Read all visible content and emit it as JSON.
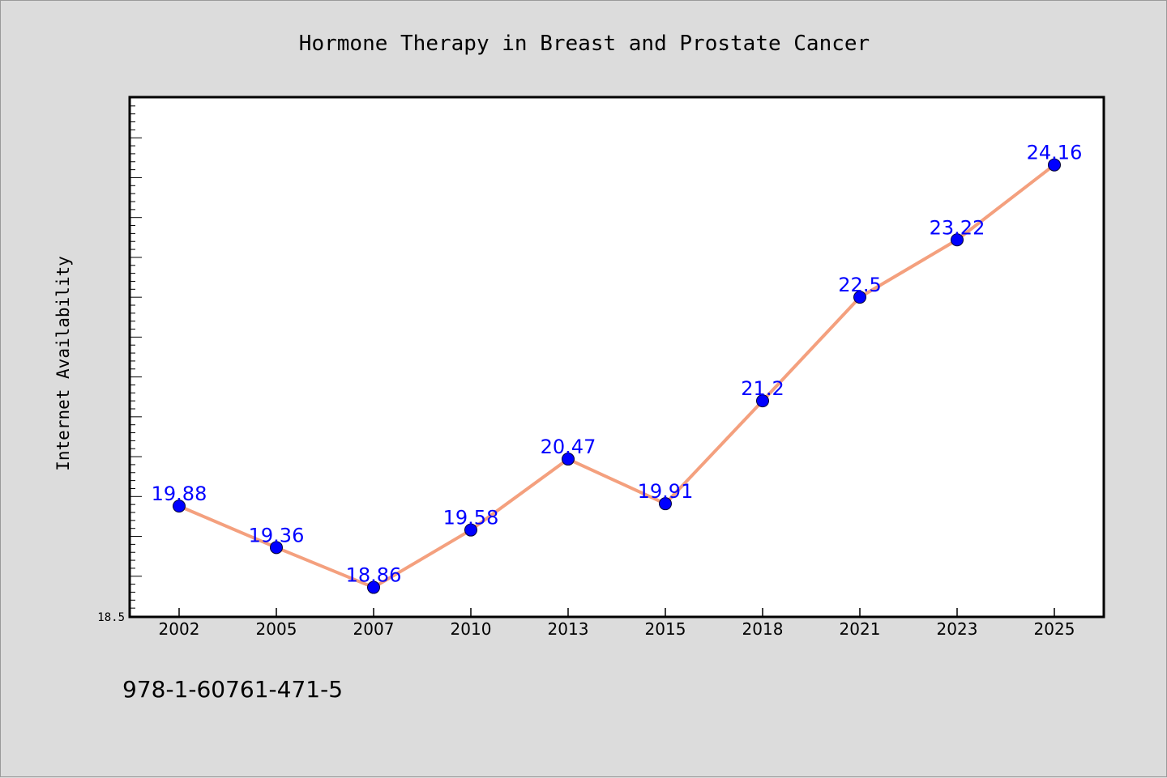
{
  "colors": {
    "background": "#dcdcdc",
    "plot_background": "#ffffff",
    "line": "#f4a07e",
    "marker": "#0000ff",
    "data_label": "#0000ff"
  },
  "footnote": "978-1-60761-471-5",
  "chart_data": {
    "type": "line",
    "title": "Hormone Therapy in Breast and Prostate Cancer",
    "xlabel": "",
    "ylabel": "Internet Availability",
    "categories": [
      "2002",
      "2005",
      "2007",
      "2010",
      "2013",
      "2015",
      "2018",
      "2021",
      "2023",
      "2025"
    ],
    "series": [
      {
        "values": [
          19.88,
          19.36,
          18.86,
          19.58,
          20.47,
          19.91,
          21.2,
          22.5,
          23.22,
          24.16
        ]
      }
    ],
    "data_labels": [
      "19.88",
      "19.36",
      "18.86",
      "19.58",
      "20.47",
      "19.91",
      "21.2",
      "22.5",
      "23.22",
      "24.16"
    ],
    "ylim": [
      18.5,
      25.0
    ],
    "y_tick_labels": [
      "18.5"
    ],
    "grid": false,
    "legend": "none"
  }
}
